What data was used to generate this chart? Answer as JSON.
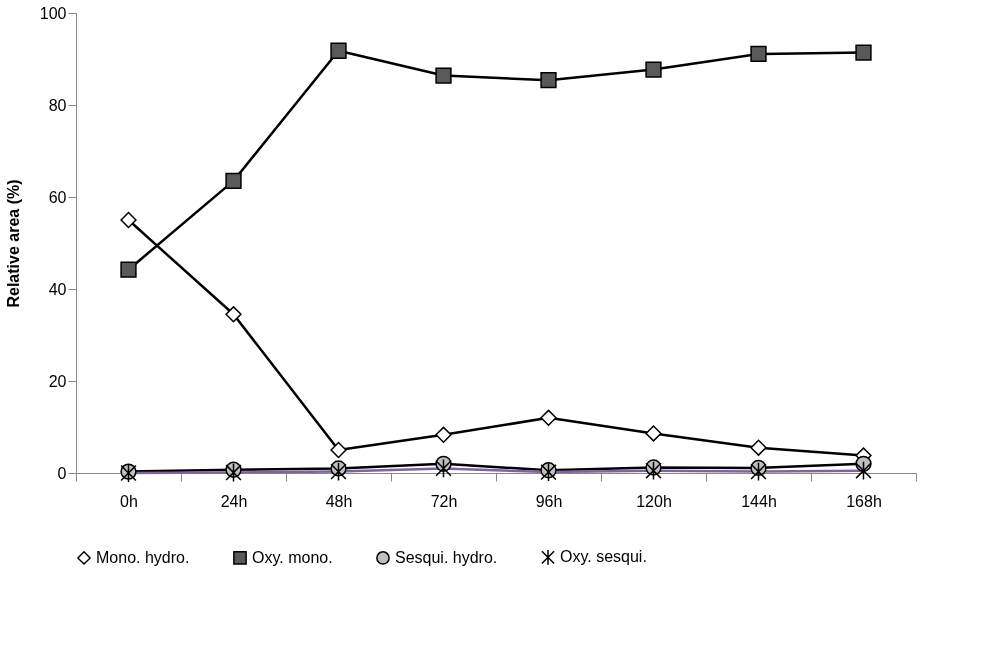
{
  "chart_data": {
    "type": "line",
    "ylabel": "Relative area (%)",
    "categories": [
      "0h",
      "24h",
      "48h",
      "72h",
      "96h",
      "120h",
      "144h",
      "168h"
    ],
    "series": [
      {
        "name": "Mono. hydro.",
        "color": "#000000",
        "marker": "diamond",
        "values": [
          55,
          34.5,
          5,
          8.3,
          12,
          8.6,
          5.5,
          3.8
        ]
      },
      {
        "name": "Oxy. mono.",
        "color": "#000000",
        "marker": "square",
        "values": [
          44.2,
          63.5,
          91.8,
          86.4,
          85.4,
          87.7,
          91.1,
          91.4
        ]
      },
      {
        "name": "Sesqui. hydro.",
        "color": "#000000",
        "marker": "circle",
        "values": [
          0.3,
          0.7,
          1.0,
          2.0,
          0.6,
          1.2,
          1.1,
          2.0
        ]
      },
      {
        "name": "Oxy. sesqui.",
        "color": "#8064a2",
        "marker": "cross",
        "values": [
          0,
          0.1,
          0.3,
          1.0,
          0.2,
          0.5,
          0.3,
          0.5
        ]
      }
    ],
    "ylim": [
      0,
      100
    ],
    "yticks": [
      0,
      20,
      40,
      60,
      80,
      100
    ],
    "grid": false,
    "legend": "bottom",
    "line_style": "solid"
  }
}
